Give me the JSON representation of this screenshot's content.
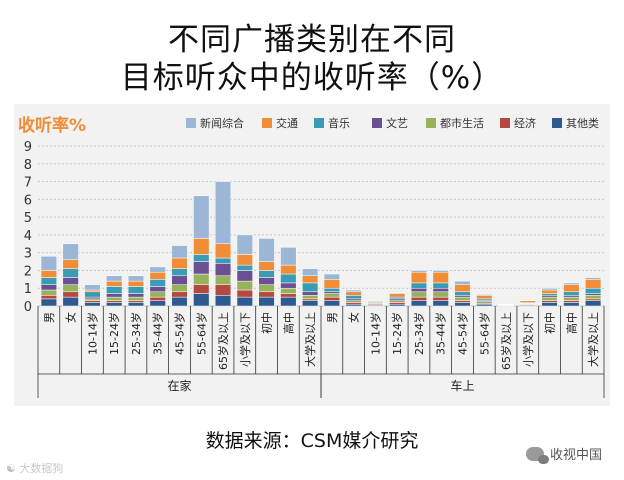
{
  "title_line1": "不同广播类别在不同",
  "title_line2": "目标听众中的收听率（%）",
  "source": "数据来源：CSM媒介研究",
  "watermark_left": "大数据狗",
  "watermark_right": "收视中国",
  "chart_data": {
    "type": "bar",
    "stacked": true,
    "ylabel": "收听率%",
    "ylim": [
      0,
      9
    ],
    "yticks": [
      0,
      1,
      2,
      3,
      4,
      5,
      6,
      7,
      8,
      9
    ],
    "grid": true,
    "legend_position": "top",
    "categories": [
      "男",
      "女",
      "10-14岁",
      "15-24岁",
      "25-34岁",
      "35-44岁",
      "45-54岁",
      "55-64岁",
      "65岁及以上",
      "小学及以下",
      "初中",
      "高中",
      "大学及以上",
      "男",
      "女",
      "10-14岁",
      "15-24岁",
      "25-34岁",
      "35-44岁",
      "45-54岁",
      "55-64岁",
      "65岁及以上",
      "小学及以下",
      "初中",
      "高中",
      "大学及以上"
    ],
    "groups": [
      {
        "label": "在家",
        "count": 13
      },
      {
        "label": "车上",
        "count": 13
      }
    ],
    "series": [
      {
        "name": "其他类",
        "color": "#2e5b8f",
        "values": [
          0.4,
          0.5,
          0.2,
          0.2,
          0.2,
          0.3,
          0.5,
          0.7,
          0.6,
          0.5,
          0.5,
          0.5,
          0.3,
          0.3,
          0.1,
          0.05,
          0.1,
          0.3,
          0.3,
          0.2,
          0.1,
          0.02,
          0.05,
          0.2,
          0.2,
          0.3
        ]
      },
      {
        "name": "经济",
        "color": "#b5493f",
        "values": [
          0.2,
          0.3,
          0.1,
          0.1,
          0.1,
          0.2,
          0.3,
          0.5,
          0.6,
          0.4,
          0.3,
          0.2,
          0.1,
          0.2,
          0.1,
          0.05,
          0.1,
          0.2,
          0.2,
          0.1,
          0.05,
          0.01,
          0.03,
          0.1,
          0.1,
          0.1
        ]
      },
      {
        "name": "都市生活",
        "color": "#96b35b",
        "values": [
          0.3,
          0.4,
          0.1,
          0.2,
          0.2,
          0.3,
          0.4,
          0.6,
          0.5,
          0.5,
          0.4,
          0.3,
          0.2,
          0.2,
          0.1,
          0.05,
          0.1,
          0.3,
          0.3,
          0.2,
          0.1,
          0.01,
          0.04,
          0.2,
          0.2,
          0.2
        ]
      },
      {
        "name": "文艺",
        "color": "#6a4f92",
        "values": [
          0.3,
          0.4,
          0.1,
          0.2,
          0.2,
          0.3,
          0.5,
          0.7,
          0.7,
          0.6,
          0.4,
          0.3,
          0.2,
          0.1,
          0.1,
          0.02,
          0.1,
          0.2,
          0.2,
          0.1,
          0.05,
          0.01,
          0.03,
          0.1,
          0.1,
          0.1
        ]
      },
      {
        "name": "音乐",
        "color": "#3a9bb5",
        "values": [
          0.4,
          0.5,
          0.3,
          0.4,
          0.4,
          0.4,
          0.4,
          0.4,
          0.3,
          0.3,
          0.4,
          0.5,
          0.5,
          0.2,
          0.2,
          0.05,
          0.1,
          0.3,
          0.3,
          0.2,
          0.1,
          0.01,
          0.05,
          0.1,
          0.2,
          0.3
        ]
      },
      {
        "name": "交通",
        "color": "#f08d36",
        "values": [
          0.4,
          0.5,
          0.1,
          0.3,
          0.3,
          0.4,
          0.6,
          0.9,
          0.8,
          0.6,
          0.5,
          0.5,
          0.4,
          0.5,
          0.2,
          0.05,
          0.2,
          0.6,
          0.6,
          0.4,
          0.2,
          0.02,
          0.1,
          0.2,
          0.4,
          0.5
        ]
      },
      {
        "name": "新闻综合",
        "color": "#9cb6d6",
        "values": [
          0.8,
          0.9,
          0.3,
          0.3,
          0.3,
          0.3,
          0.7,
          2.4,
          3.5,
          1.1,
          1.3,
          1.0,
          0.4,
          0.3,
          0.1,
          0.02,
          0.05,
          0.1,
          0.1,
          0.2,
          0.05,
          0.02,
          0.02,
          0.1,
          0.1,
          0.1
        ]
      }
    ],
    "legend": [
      "新闻综合",
      "交通",
      "音乐",
      "文艺",
      "都市生活",
      "经济",
      "其他类"
    ]
  }
}
